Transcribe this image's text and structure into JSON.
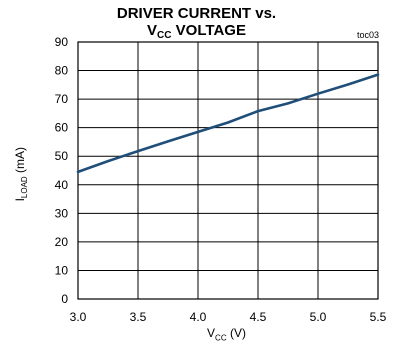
{
  "chart_data": {
    "type": "line",
    "title_line1": "DRIVER CURRENT vs.",
    "title_line2_main": "V",
    "title_line2_sub": "CC",
    "title_line2_rest": " VOLTAGE",
    "figure_tag": "toc03",
    "xlabel_main": "V",
    "xlabel_sub": "CC",
    "xlabel_rest": " (V)",
    "ylabel_main": "I",
    "ylabel_sub": "LOAD",
    "ylabel_rest": " (mA)",
    "xlim": [
      3.0,
      5.5
    ],
    "ylim": [
      0,
      90
    ],
    "x_ticks": [
      "3.0",
      "3.5",
      "4.0",
      "4.5",
      "5.0",
      "5.5"
    ],
    "y_ticks": [
      "0",
      "10",
      "20",
      "30",
      "40",
      "50",
      "60",
      "70",
      "80",
      "90"
    ],
    "grid": true,
    "line_color": "#1f4e79",
    "series": [
      {
        "x": [
          3.0,
          3.25,
          3.5,
          3.75,
          4.0,
          4.25,
          4.5,
          4.75,
          5.0,
          5.25,
          5.5
        ],
        "y": [
          44.5,
          48.3,
          51.8,
          55.2,
          58.5,
          61.8,
          65.8,
          68.5,
          71.9,
          75.1,
          78.6
        ]
      }
    ]
  }
}
